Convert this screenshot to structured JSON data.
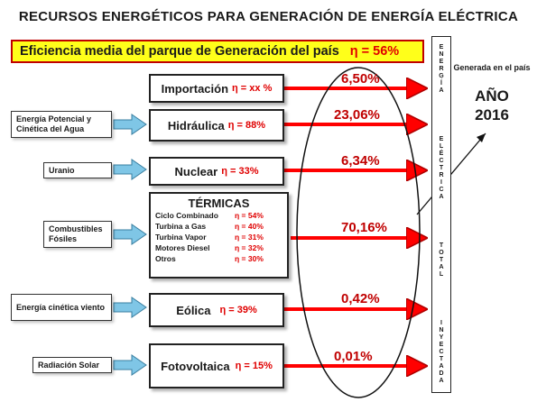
{
  "title": "RECURSOS  ENERGÉTICOS PARA GENERACIÓN  DE  ENERGÍA  ELÉCTRICA",
  "efficiency": {
    "label": "Eficiencia  media del parque de Generación del país",
    "eta": "η = 56%"
  },
  "sources": [
    {
      "label": "Energía Potencial  y Cinética  del Agua"
    },
    {
      "label": "Uranio"
    },
    {
      "label": "Combustibles Fósiles"
    },
    {
      "label": "Energía cinética viento"
    },
    {
      "label": "Radiación Solar"
    }
  ],
  "technologies": {
    "importacion": {
      "name": "Importación",
      "eta": "η = xx %",
      "pct": "6,50%"
    },
    "hidraulica": {
      "name": "Hidráulica",
      "eta": "η = 88%",
      "pct": "23,06%"
    },
    "nuclear": {
      "name": "Nuclear",
      "eta": "η = 33%",
      "pct": "6,34%"
    },
    "termicas": {
      "name": "TÉRMICAS",
      "pct": "70,16%",
      "rows": [
        {
          "name": "Ciclo Combinado",
          "eta": "η  = 54%"
        },
        {
          "name": "Turbina a Gas",
          "eta": "η  = 40%"
        },
        {
          "name": "Turbina Vapor",
          "eta": "η  = 31%"
        },
        {
          "name": "Motores Diesel",
          "eta": "η  = 32%"
        },
        {
          "name": "Otros",
          "eta": "η  = 30%"
        }
      ]
    },
    "eolica": {
      "name": "Eólica",
      "eta": "η = 39%",
      "pct": "0,42%"
    },
    "fotovoltaica": {
      "name": "Fotovoltaica",
      "eta": "η = 15%",
      "pct": "0,01%"
    }
  },
  "total_column": {
    "word1": [
      "E",
      "N",
      "E",
      "R",
      "G",
      "Í",
      "A"
    ],
    "word2": [
      "E",
      "L",
      "É",
      "C",
      "T",
      "R",
      "I",
      "C",
      "A"
    ],
    "word3": [
      "T",
      "O",
      "T",
      "A",
      "L"
    ],
    "word4": [
      "I",
      "N",
      "Y",
      "E",
      "C",
      "T",
      "A",
      "D",
      "A"
    ]
  },
  "side": {
    "generated": "Generada en el país",
    "year_label": "AÑO",
    "year": "2016"
  },
  "colors": {
    "arrow": "#ff0000",
    "arrow_dark": "#b00000",
    "source_arrow": "#7fc6e6",
    "highlight": "#ffff1a"
  }
}
